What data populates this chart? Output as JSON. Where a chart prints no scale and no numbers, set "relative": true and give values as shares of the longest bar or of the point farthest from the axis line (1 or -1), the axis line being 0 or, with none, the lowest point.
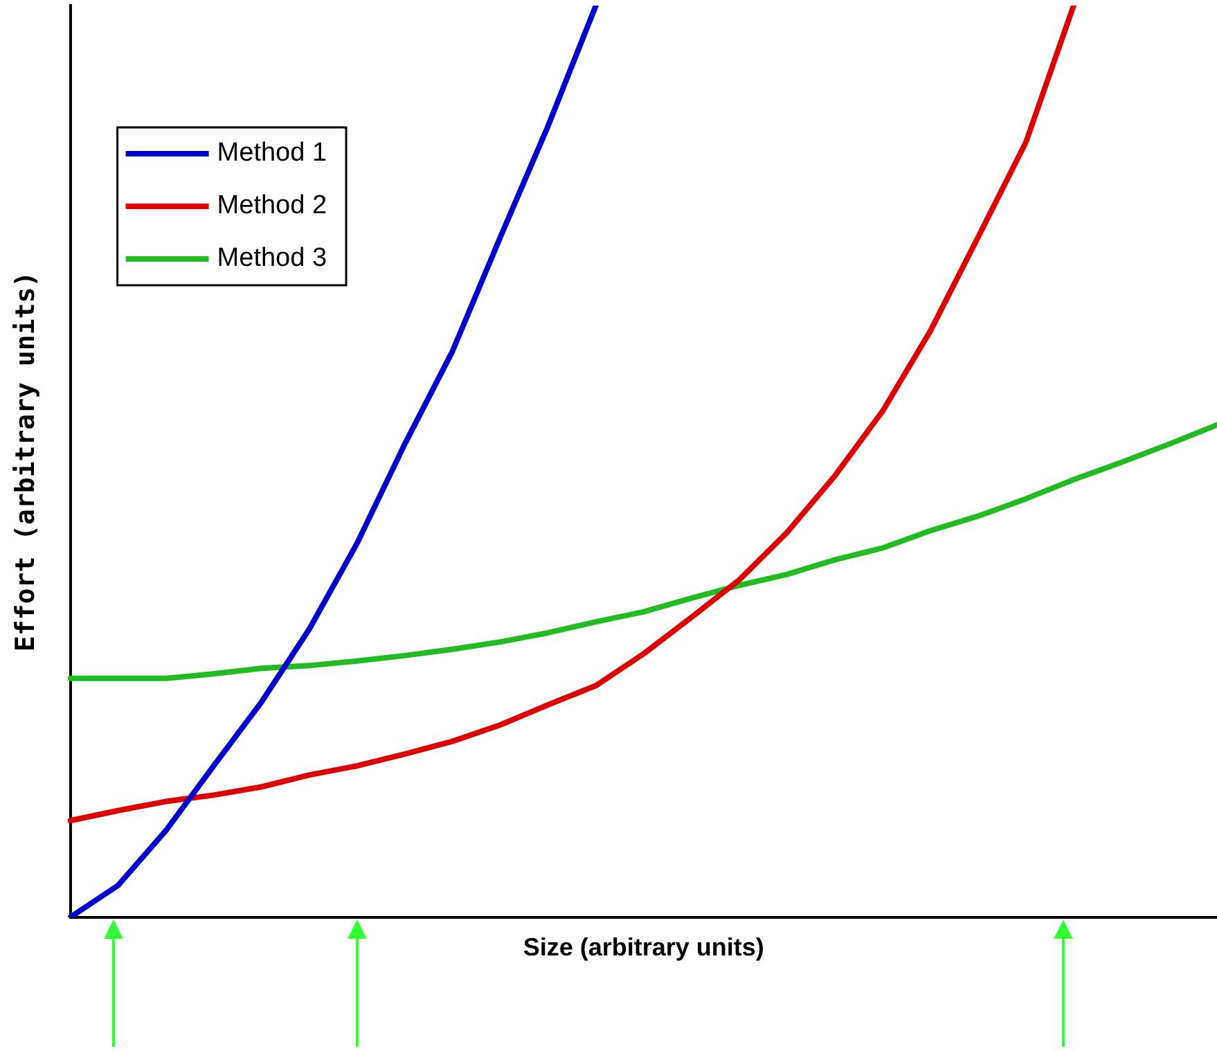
{
  "chart_data": {
    "type": "line",
    "relative": true,
    "xlabel": "Size (arbitrary units)",
    "ylabel": "Effort (arbitrary units)",
    "legend": "top left",
    "marker": "none",
    "categories": [
      null,
      null,
      null,
      null,
      null,
      null,
      null,
      null,
      null,
      null,
      null,
      null,
      null,
      null,
      null,
      null,
      null,
      null,
      null,
      null,
      null,
      null,
      null,
      null,
      null
    ],
    "series": [
      {
        "name": "Method 1",
        "color": "#0000cc",
        "values": [
          0,
          0.035,
          0.095,
          0.166,
          0.236,
          0.316,
          0.41,
          0.519,
          0.621,
          0.746,
          0.868,
          1,
          null,
          null,
          null,
          null,
          null,
          null,
          null,
          null,
          null,
          null,
          null,
          null,
          null
        ]
      },
      {
        "name": "Method 2",
        "color": "#dd0000",
        "values": [
          0.106,
          0.117,
          0.127,
          0.134,
          0.143,
          0.156,
          0.166,
          0.179,
          0.193,
          0.211,
          0.233,
          0.254,
          0.289,
          0.329,
          0.37,
          0.422,
          0.484,
          0.555,
          0.643,
          0.746,
          0.85,
          1,
          null,
          null,
          null
        ]
      },
      {
        "name": "Method 3",
        "color": "#22bb22",
        "values": [
          0.262,
          0.262,
          0.262,
          0.267,
          0.273,
          0.276,
          0.281,
          0.287,
          0.294,
          0.302,
          0.312,
          0.324,
          0.335,
          0.35,
          0.364,
          0.376,
          0.392,
          0.405,
          0.424,
          0.44,
          0.459,
          0.48,
          0.499,
          0.519,
          0.54
        ]
      }
    ]
  }
}
